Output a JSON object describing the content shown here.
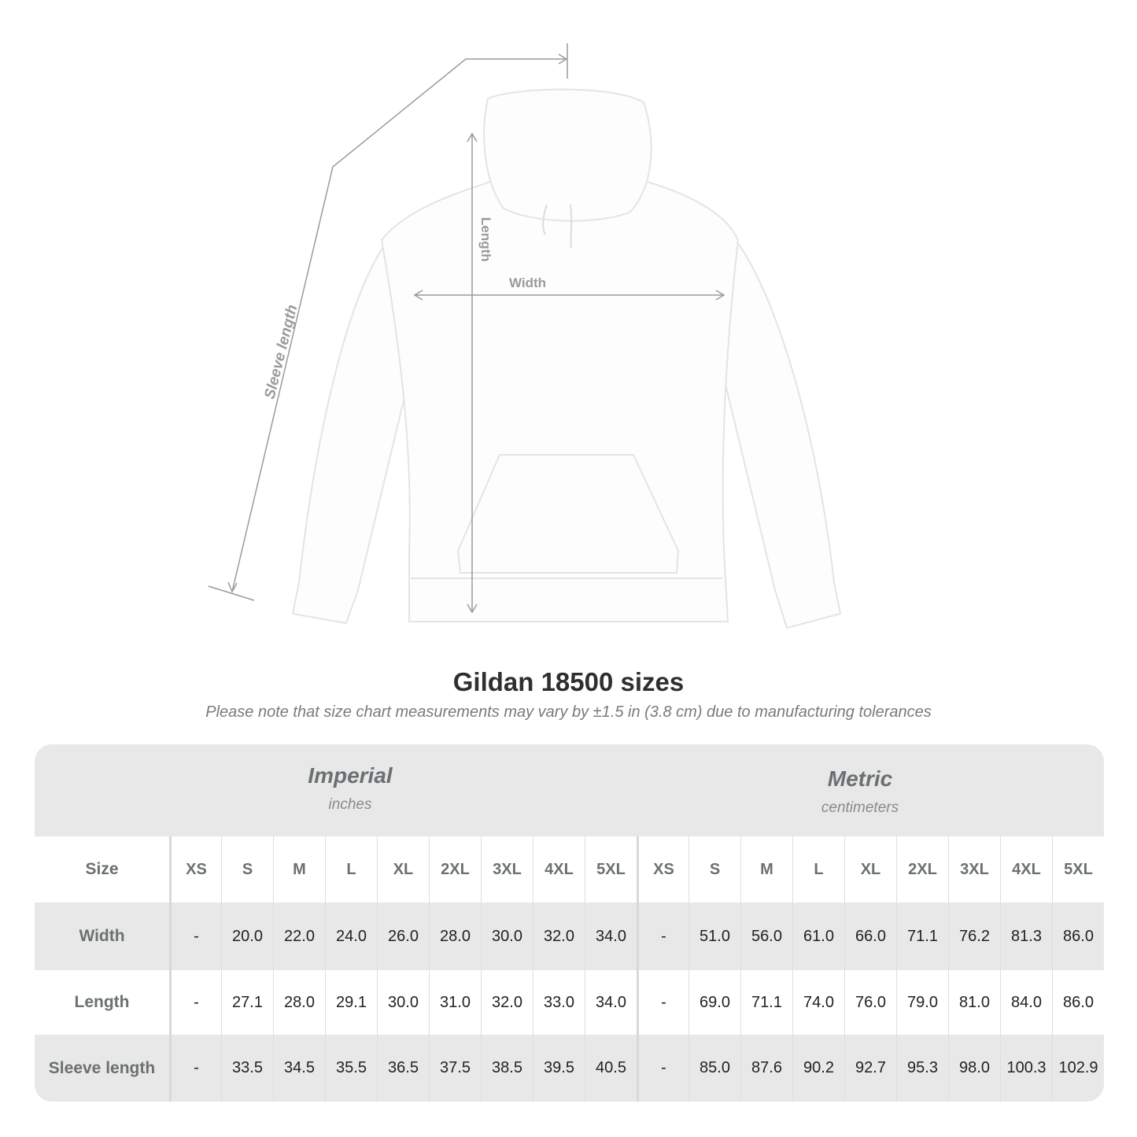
{
  "diagram": {
    "labels": {
      "sleeve": "Sleeve length",
      "length": "Length",
      "width": "Width"
    },
    "line_color": "#9a9a9a"
  },
  "title": "Gildan 18500 sizes",
  "subtitle": "Please note that size chart measurements may vary by ±1.5 in (3.8 cm) due to manufacturing tolerances",
  "table": {
    "imperial": {
      "name": "Imperial",
      "unit": "inches"
    },
    "metric": {
      "name": "Metric",
      "unit": "centimeters"
    },
    "size_label": "Size",
    "sizes": [
      "XS",
      "S",
      "M",
      "L",
      "XL",
      "2XL",
      "3XL",
      "4XL",
      "5XL"
    ],
    "rows": [
      {
        "label": "Width",
        "imperial": [
          "-",
          "20.0",
          "22.0",
          "24.0",
          "26.0",
          "28.0",
          "30.0",
          "32.0",
          "34.0"
        ],
        "metric": [
          "-",
          "51.0",
          "56.0",
          "61.0",
          "66.0",
          "71.1",
          "76.2",
          "81.3",
          "86.0"
        ]
      },
      {
        "label": "Length",
        "imperial": [
          "-",
          "27.1",
          "28.0",
          "29.1",
          "30.0",
          "31.0",
          "32.0",
          "33.0",
          "34.0"
        ],
        "metric": [
          "-",
          "69.0",
          "71.1",
          "74.0",
          "76.0",
          "79.0",
          "81.0",
          "84.0",
          "86.0"
        ]
      },
      {
        "label": "Sleeve length",
        "imperial": [
          "-",
          "33.5",
          "34.5",
          "35.5",
          "36.5",
          "37.5",
          "38.5",
          "39.5",
          "40.5"
        ],
        "metric": [
          "-",
          "85.0",
          "87.6",
          "90.2",
          "92.7",
          "95.3",
          "98.0",
          "100.3",
          "102.9"
        ]
      }
    ],
    "colors": {
      "band": "#e8e8e8",
      "label": "#6b7072"
    }
  }
}
